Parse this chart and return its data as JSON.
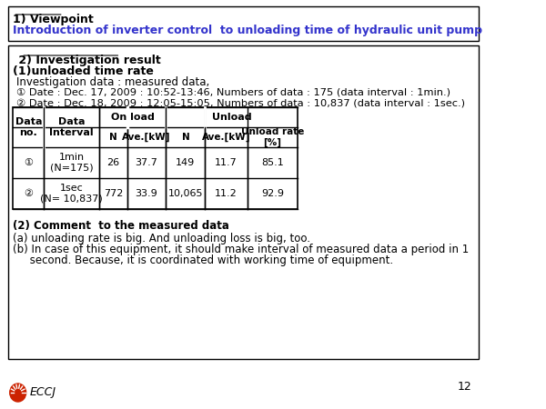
{
  "title_number": "1) Viewpoint",
  "title_text": "Introduction of inverter control  to unloading time of hydraulic unit pump",
  "section2_title": " 2) Investigation result",
  "section2_sub": "(1)unloaded time rate",
  "inv_data_label": "Investigation data : measured data,",
  "inv_date1": "① Date : Dec. 17, 2009 : 10:52-13:46, Numbers of data : 175 (data interval : 1min.)",
  "inv_date2": "② Date : Dec. 18, 2009 : 12:05-15:05, Numbers of data : 10,837 (data interval : 1sec.)",
  "table_header1": [
    "Data\nno.",
    "Data\nInterval",
    "On load",
    "",
    "Unload",
    "",
    ""
  ],
  "table_header2": [
    "",
    "",
    "N",
    "Ave.[kW]",
    "N",
    "Ave.[kW]",
    "Unload rate\n[%]"
  ],
  "table_row1": [
    "①",
    "1min\n(N=175)",
    "26",
    "37.7",
    "149",
    "11.7",
    "85.1"
  ],
  "table_row2": [
    "②",
    "1sec\n(N= 10,837)",
    "772",
    "33.9",
    "10,065",
    "11.2",
    "92.9"
  ],
  "comment_title": "(2) Comment  to the measured data",
  "comment_a": "(a) unloading rate is big. And unloading loss is big, too.",
  "comment_b": "(b) In case of this equipment, it should make interval of measured data a period in 1\n     second. Because, it is coordinated with working time of equipment.",
  "page_num": "12",
  "logo_text": "ECCJ",
  "bg_color": "#ffffff",
  "box_border_color": "#000000",
  "title_text_color": "#3333cc",
  "title_number_color": "#000000",
  "body_text_color": "#000000",
  "table_header_bg": "#ffffff"
}
